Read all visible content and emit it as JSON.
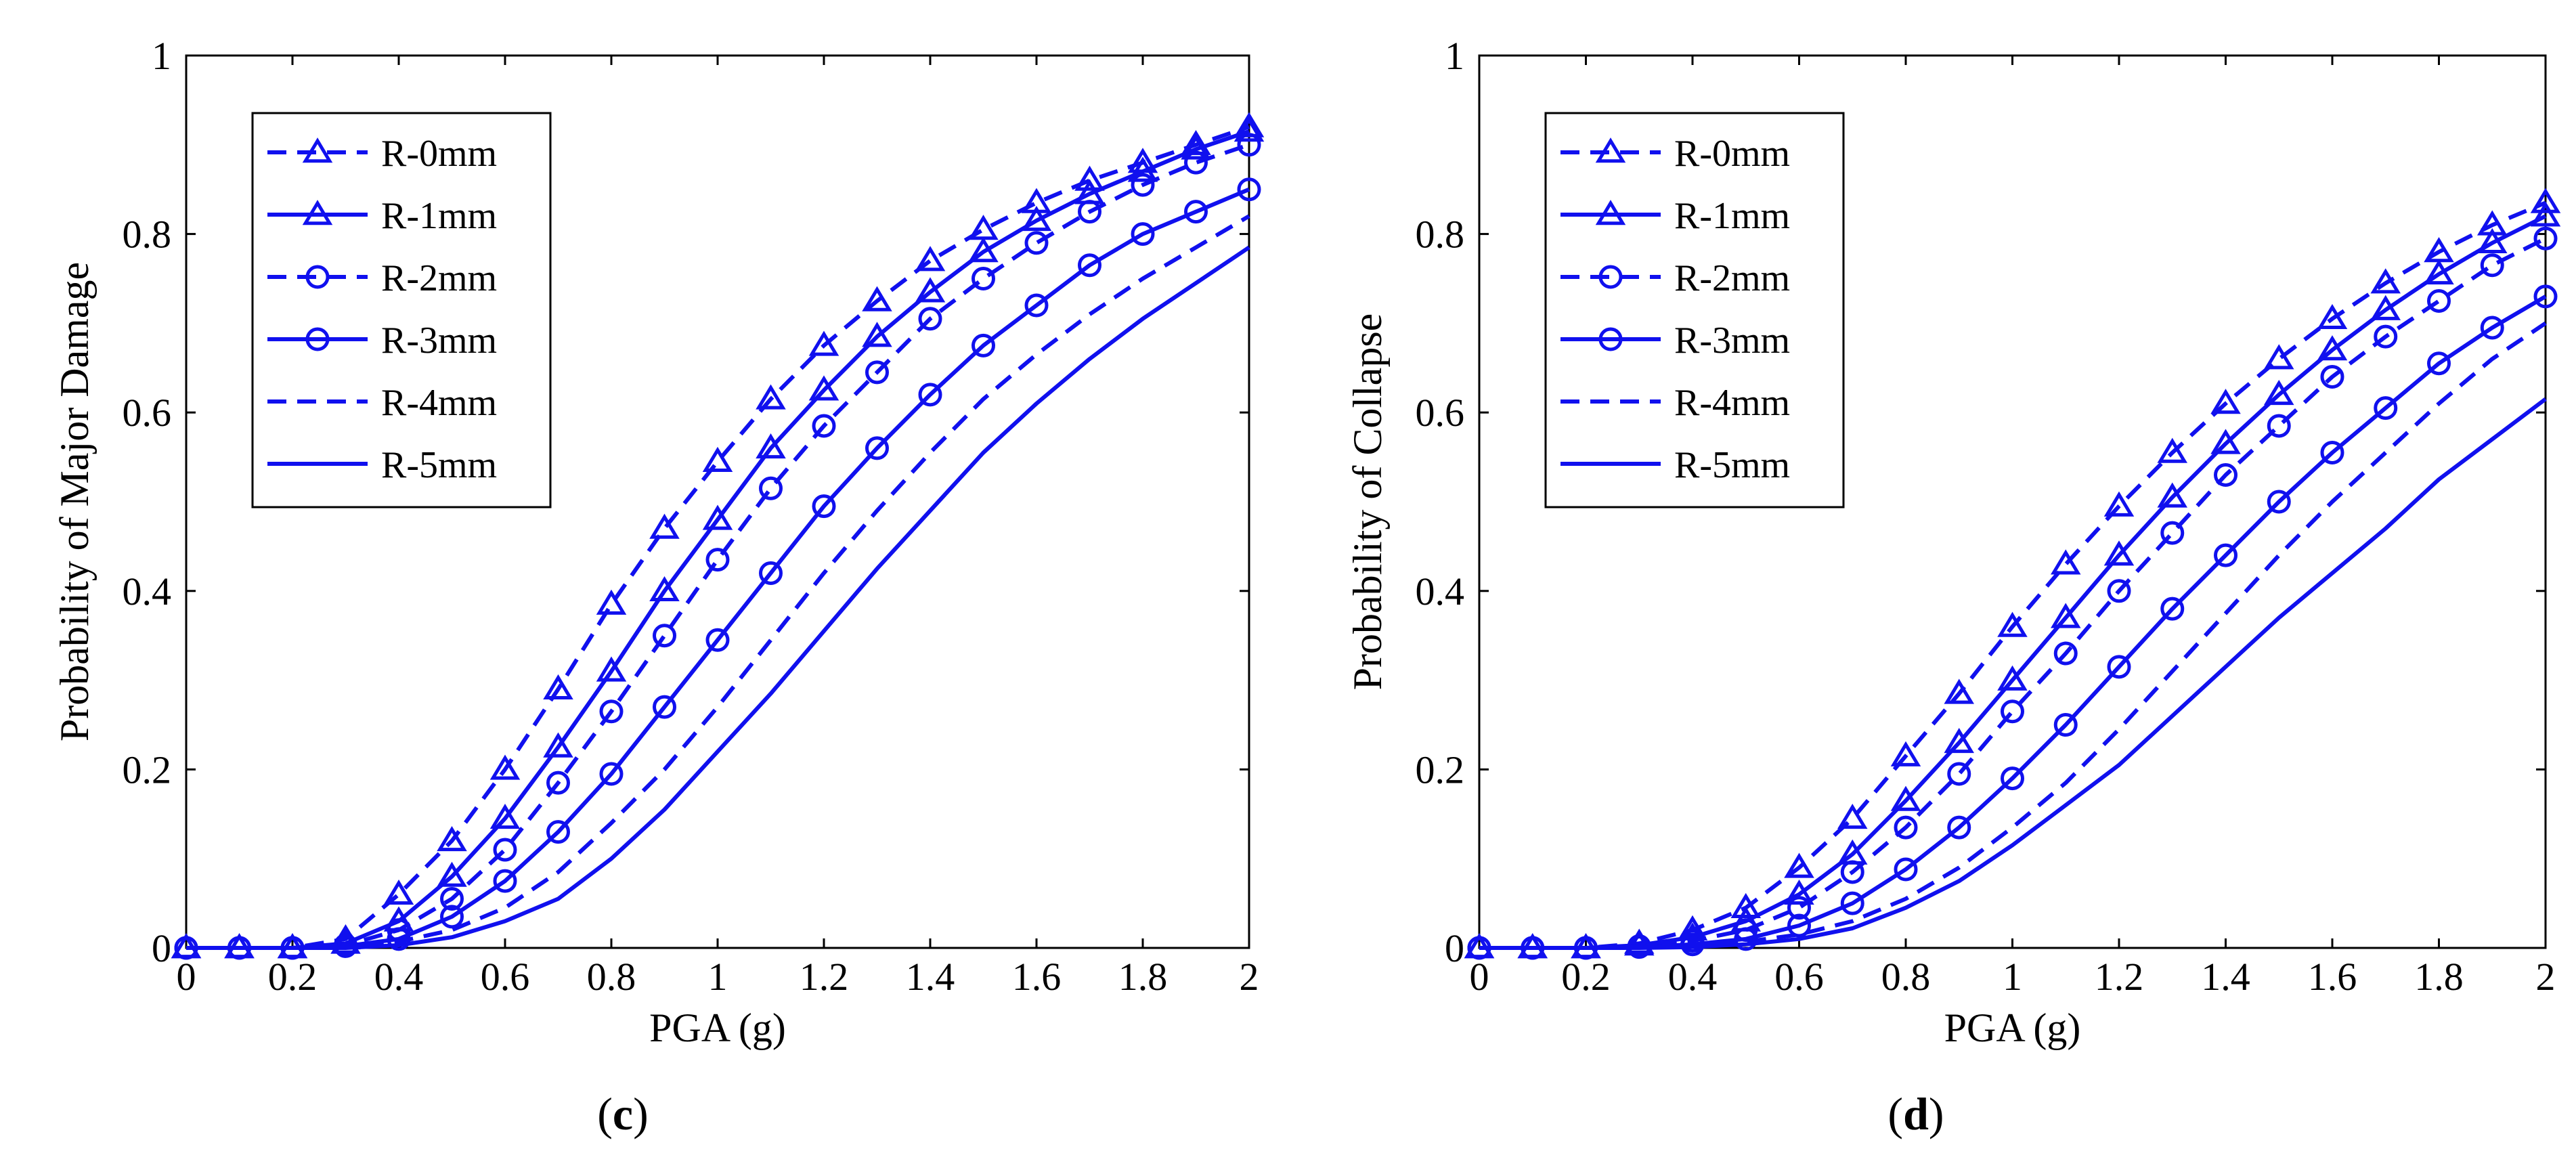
{
  "series_color": "#1010ee",
  "chart_data": [
    {
      "type": "line",
      "panel": "c",
      "caption": {
        "open": "(",
        "letter": "c",
        "close": ")"
      },
      "title": "",
      "xlabel": "PGA (g)",
      "ylabel": "Probability of Major Damage",
      "xlim": [
        0,
        2
      ],
      "ylim": [
        0,
        1
      ],
      "xticks": [
        "0",
        "0.2",
        "0.4",
        "0.6",
        "0.8",
        "1",
        "1.2",
        "1.4",
        "1.6",
        "1.8",
        "2"
      ],
      "yticks": [
        "0",
        "0.2",
        "0.4",
        "0.6",
        "0.8",
        "1"
      ],
      "grid": false,
      "legend_position": "top-left",
      "x": [
        0,
        0.1,
        0.2,
        0.3,
        0.4,
        0.5,
        0.6,
        0.7,
        0.8,
        0.9,
        1.0,
        1.1,
        1.2,
        1.3,
        1.4,
        1.5,
        1.6,
        1.7,
        1.8,
        1.9,
        2.0
      ],
      "series": [
        {
          "name": "R-0mm",
          "style": "dashed",
          "marker": "triangle",
          "values": [
            0,
            0,
            0,
            0.01,
            0.06,
            0.12,
            0.2,
            0.29,
            0.385,
            0.47,
            0.545,
            0.615,
            0.675,
            0.725,
            0.77,
            0.805,
            0.835,
            0.86,
            0.88,
            0.9,
            0.92
          ]
        },
        {
          "name": "R-1mm",
          "style": "solid",
          "marker": "triangle",
          "values": [
            0,
            0,
            0,
            0.005,
            0.03,
            0.08,
            0.145,
            0.225,
            0.31,
            0.4,
            0.48,
            0.56,
            0.625,
            0.685,
            0.735,
            0.78,
            0.815,
            0.845,
            0.87,
            0.895,
            0.915
          ]
        },
        {
          "name": "R-2mm",
          "style": "dashed",
          "marker": "circle",
          "values": [
            0,
            0,
            0,
            0.003,
            0.02,
            0.055,
            0.11,
            0.185,
            0.265,
            0.35,
            0.435,
            0.515,
            0.585,
            0.645,
            0.705,
            0.75,
            0.79,
            0.825,
            0.855,
            0.88,
            0.9
          ]
        },
        {
          "name": "R-3mm",
          "style": "solid",
          "marker": "circle",
          "values": [
            0,
            0,
            0,
            0.002,
            0.01,
            0.035,
            0.075,
            0.13,
            0.195,
            0.27,
            0.345,
            0.42,
            0.495,
            0.56,
            0.62,
            0.675,
            0.72,
            0.765,
            0.8,
            0.825,
            0.85
          ]
        },
        {
          "name": "R-4mm",
          "style": "dashed",
          "marker": "none",
          "values": [
            0,
            0,
            0,
            0.001,
            0.007,
            0.02,
            0.045,
            0.085,
            0.14,
            0.2,
            0.27,
            0.345,
            0.42,
            0.49,
            0.555,
            0.615,
            0.665,
            0.71,
            0.75,
            0.785,
            0.82
          ]
        },
        {
          "name": "R-5mm",
          "style": "solid",
          "marker": "none",
          "values": [
            0,
            0,
            0,
            0,
            0.003,
            0.012,
            0.03,
            0.055,
            0.1,
            0.155,
            0.22,
            0.285,
            0.355,
            0.425,
            0.49,
            0.555,
            0.61,
            0.66,
            0.705,
            0.745,
            0.785
          ]
        }
      ]
    },
    {
      "type": "line",
      "panel": "d",
      "caption": {
        "open": "(",
        "letter": "d",
        "close": ")"
      },
      "title": "",
      "xlabel": "PGA (g)",
      "ylabel": "Probability of Collapse",
      "xlim": [
        0,
        2
      ],
      "ylim": [
        0,
        1
      ],
      "xticks": [
        "0",
        "0.2",
        "0.4",
        "0.6",
        "0.8",
        "1",
        "1.2",
        "1.4",
        "1.6",
        "1.8",
        "2"
      ],
      "yticks": [
        "0",
        "0.2",
        "0.4",
        "0.6",
        "0.8",
        "1"
      ],
      "grid": false,
      "legend_position": "top-left",
      "x": [
        0,
        0.1,
        0.2,
        0.3,
        0.4,
        0.5,
        0.6,
        0.7,
        0.8,
        0.9,
        1.0,
        1.1,
        1.2,
        1.3,
        1.4,
        1.5,
        1.6,
        1.7,
        1.8,
        1.9,
        2.0
      ],
      "series": [
        {
          "name": "R-0mm",
          "style": "dashed",
          "marker": "triangle",
          "values": [
            0,
            0,
            0,
            0.005,
            0.02,
            0.045,
            0.09,
            0.145,
            0.215,
            0.285,
            0.36,
            0.43,
            0.495,
            0.555,
            0.61,
            0.66,
            0.705,
            0.745,
            0.78,
            0.81,
            0.835
          ]
        },
        {
          "name": "R-1mm",
          "style": "solid",
          "marker": "triangle",
          "values": [
            0,
            0,
            0,
            0.003,
            0.012,
            0.03,
            0.06,
            0.105,
            0.165,
            0.23,
            0.3,
            0.37,
            0.44,
            0.505,
            0.565,
            0.62,
            0.67,
            0.715,
            0.755,
            0.79,
            0.82
          ]
        },
        {
          "name": "R-2mm",
          "style": "dashed",
          "marker": "circle",
          "values": [
            0,
            0,
            0,
            0.002,
            0.008,
            0.02,
            0.045,
            0.085,
            0.135,
            0.195,
            0.265,
            0.33,
            0.4,
            0.465,
            0.53,
            0.585,
            0.64,
            0.685,
            0.725,
            0.765,
            0.795
          ]
        },
        {
          "name": "R-3mm",
          "style": "solid",
          "marker": "circle",
          "values": [
            0,
            0,
            0,
            0.001,
            0.004,
            0.01,
            0.025,
            0.05,
            0.088,
            0.135,
            0.19,
            0.25,
            0.315,
            0.38,
            0.44,
            0.5,
            0.555,
            0.605,
            0.655,
            0.695,
            0.73
          ]
        },
        {
          "name": "R-4mm",
          "style": "dashed",
          "marker": "none",
          "values": [
            0,
            0,
            0,
            0.001,
            0.003,
            0.007,
            0.015,
            0.03,
            0.055,
            0.09,
            0.135,
            0.185,
            0.245,
            0.31,
            0.375,
            0.44,
            0.5,
            0.555,
            0.61,
            0.66,
            0.7
          ]
        },
        {
          "name": "R-5mm",
          "style": "solid",
          "marker": "none",
          "values": [
            0,
            0,
            0,
            0,
            0.001,
            0.004,
            0.01,
            0.022,
            0.045,
            0.075,
            0.115,
            0.16,
            0.205,
            0.26,
            0.315,
            0.37,
            0.42,
            0.47,
            0.525,
            0.57,
            0.615
          ]
        }
      ]
    }
  ]
}
